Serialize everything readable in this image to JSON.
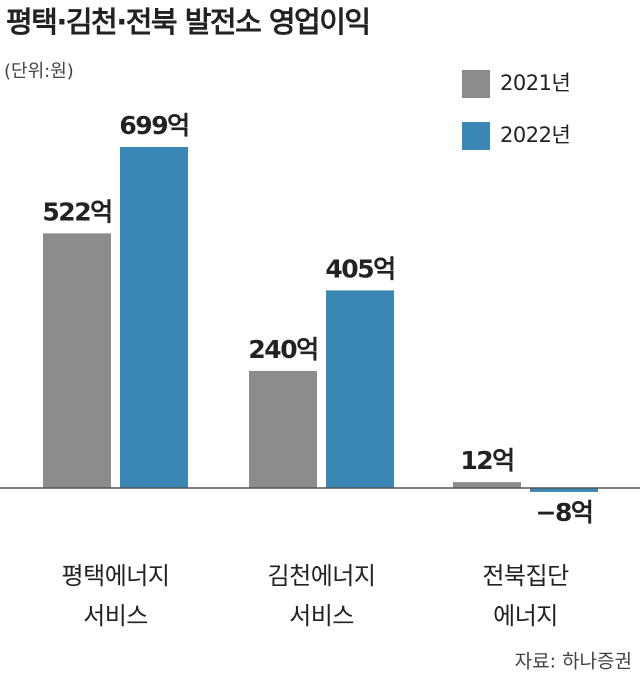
{
  "chart_data": {
    "type": "bar",
    "title": "평택·김천·전북 발전소 영업이익",
    "subtitle": "(단위:원)",
    "source": "자료: 하나증권",
    "categories": [
      [
        "평택에너지",
        "서비스"
      ],
      [
        "김천에너지",
        "서비스"
      ],
      [
        "전북집단",
        "에너지"
      ]
    ],
    "series": [
      {
        "name": "2021년",
        "color": "#8b8c8e",
        "values": [
          522,
          240,
          12
        ],
        "value_labels": [
          "522억",
          "240억",
          "12억"
        ]
      },
      {
        "name": "2022년",
        "color": "#3a86b5",
        "values": [
          699,
          405,
          -8
        ],
        "value_labels": [
          "699억",
          "405억",
          "−8억"
        ]
      }
    ]
  }
}
